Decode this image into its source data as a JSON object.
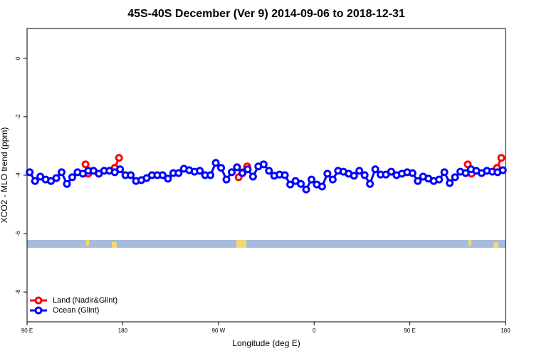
{
  "chart_data": {
    "type": "line",
    "title": "45S-40S December (Ver 9)   2014-09-06 to 2018-12-31",
    "x_label": "Longitude (deg E)",
    "y_label": "XCO2 - MLO trend (ppm)",
    "xlim": [
      90,
      540
    ],
    "xticks": [
      {
        "value": 90,
        "label": "90 E"
      },
      180,
      {
        "value": 270,
        "label": "90 W"
      },
      {
        "value": 360,
        "label": "0"
      },
      {
        "value": 450,
        "label": "90 E"
      },
      {
        "value": 540,
        "label": "180"
      }
    ],
    "ylim": [
      -9.02,
      1.02
    ],
    "yticks": [
      0,
      -2,
      -4,
      -6,
      -8
    ],
    "legend": "bottom-left",
    "series": [
      {
        "name": "Land (Nadir&Glint)",
        "color": "#ff0000",
        "x": [
          145,
          147.5,
          null,
          172.5,
          176.5,
          null,
          289,
          293,
          297,
          null,
          504.5,
          508,
          null,
          532,
          536
        ],
        "values": [
          -3.63,
          -3.95,
          null,
          -3.75,
          -3.41,
          null,
          -4.07,
          -3.9,
          -3.7,
          null,
          -3.63,
          -3.95,
          null,
          -3.75,
          -3.41
        ]
      },
      {
        "name": "Ocean (Glint)",
        "color": "#0000ff",
        "x": [
          92.5,
          97.5,
          102.5,
          107.5,
          112.5,
          117.5,
          122.5,
          127.5,
          132.5,
          137.5,
          142.5,
          147.5,
          152.5,
          157.5,
          162.5,
          167.5,
          172.5,
          177.5,
          182.5,
          187.5,
          192.5,
          197.5,
          202.5,
          207.5,
          212.5,
          217.5,
          222.5,
          227.5,
          232.5,
          237.5,
          242.5,
          247.5,
          252.5,
          257.5,
          262.5,
          267.5,
          272.5,
          277.5,
          282.5,
          287.5,
          292.5,
          297.5,
          302.5,
          307.5,
          312.5,
          317.5,
          322.5,
          327.5,
          332.5,
          337.5,
          342.5,
          347.5,
          352.5,
          357.5,
          362.5,
          367.5,
          372.5,
          377.5,
          382.5,
          387.5,
          392.5,
          397.5,
          402.5,
          407.5,
          412.5,
          417.5,
          422.5,
          427.5,
          432.5,
          437.5,
          442.5,
          447.5,
          452.5,
          457.5,
          462.5,
          467.5,
          472.5,
          477.5,
          482.5,
          487.5,
          492.5,
          497.5,
          502.5,
          507.5,
          512.5,
          517.5,
          522.5,
          527.5,
          532.5,
          537.5
        ],
        "values": [
          -3.9,
          -4.2,
          -4.05,
          -4.15,
          -4.2,
          -4.1,
          -3.9,
          -4.3,
          -4.07,
          -3.9,
          -3.95,
          -3.85,
          -3.85,
          -3.95,
          -3.85,
          -3.85,
          -3.9,
          -3.8,
          -4,
          -4,
          -4.2,
          -4.17,
          -4.1,
          -4,
          -4,
          -4,
          -4.12,
          -3.93,
          -3.93,
          -3.78,
          -3.83,
          -3.88,
          -3.85,
          -4,
          -4,
          -3.58,
          -3.75,
          -4.15,
          -3.9,
          -3.73,
          -3.93,
          -3.8,
          -4.05,
          -3.7,
          -3.63,
          -3.85,
          -4.02,
          -3.98,
          -4,
          -4.32,
          -4.2,
          -4.3,
          -4.49,
          -4.15,
          -4.32,
          -4.39,
          -3.95,
          -4.15,
          -3.85,
          -3.88,
          -3.95,
          -4.02,
          -3.85,
          -4,
          -4.3,
          -3.8,
          -3.98,
          -3.98,
          -3.88,
          -4,
          -3.95,
          -3.9,
          -3.93,
          -4.2,
          -4.05,
          -4.12,
          -4.2,
          -4.15,
          -3.9,
          -4.27,
          -4.07,
          -3.88,
          -3.93,
          -3.8,
          -3.85,
          -3.93,
          -3.85,
          -3.88,
          -3.9,
          -3.83
        ]
      }
    ]
  }
}
